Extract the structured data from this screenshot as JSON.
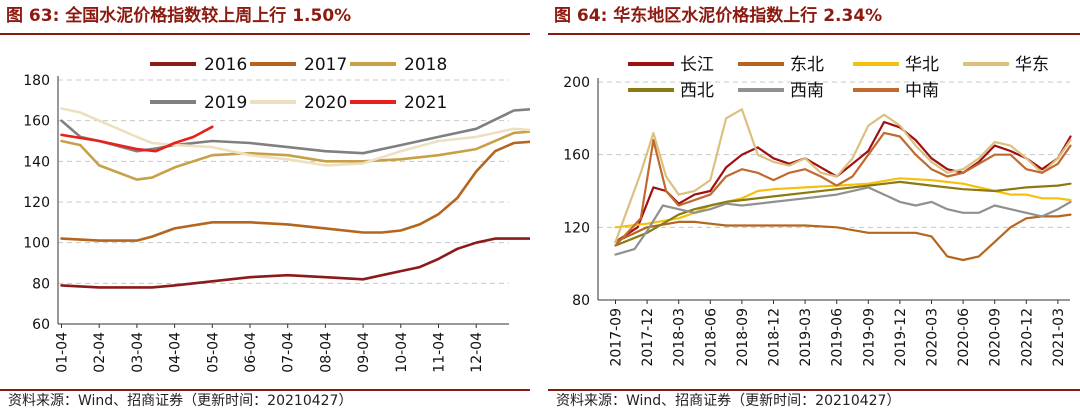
{
  "charts": [
    {
      "title": "图 63:  全国水泥价格指数较上周上行 1.50%",
      "source": "资料来源：Wind、招商证券（更新时间：20210427）"
    },
    {
      "title": "图 64:  华东地区水泥价格指数上行 2.34%",
      "source": "资料来源：Wind、招商证券（更新时间：20210427）"
    }
  ],
  "chart_data": [
    {
      "type": "line",
      "title": "图 63:  全国水泥价格指数较上周上行 1.50%",
      "ylim": [
        60,
        180
      ],
      "y_ticks": [
        "60",
        "80",
        "100",
        "120",
        "140",
        "160",
        "180"
      ],
      "x_ticks": [
        "01-04",
        "02-04",
        "03-04",
        "04-04",
        "05-04",
        "06-04",
        "07-04",
        "08-04",
        "09-04",
        "10-04",
        "11-04",
        "12-04"
      ],
      "grid": "horizontal dashed",
      "legend": "top",
      "series": [
        {
          "name": "2016",
          "color": "#8b1a1a",
          "x": [
            0,
            1,
            2,
            2.4,
            3,
            4,
            5,
            6,
            7,
            8,
            8.5,
            9,
            9.5,
            10,
            10.5,
            11,
            11.5,
            12,
            12.7
          ],
          "y": [
            79,
            78,
            78,
            78,
            79,
            81,
            83,
            84,
            83,
            82,
            84,
            86,
            88,
            92,
            97,
            100,
            102,
            102,
            102
          ]
        },
        {
          "name": "2017",
          "color": "#b5661e",
          "x": [
            0,
            1,
            2,
            2.4,
            3,
            4,
            5,
            6,
            7,
            8,
            8.5,
            9,
            9.5,
            10,
            10.5,
            11,
            11.5,
            12,
            12.7
          ],
          "y": [
            102,
            101,
            101,
            103,
            107,
            110,
            110,
            109,
            107,
            105,
            105,
            106,
            109,
            114,
            122,
            135,
            145,
            149,
            150
          ]
        },
        {
          "name": "2018",
          "color": "#c8a048",
          "x": [
            0,
            0.5,
            1,
            2,
            2.4,
            3,
            4,
            5,
            6,
            7,
            8,
            9,
            10,
            11,
            12,
            12.7
          ],
          "y": [
            150,
            148,
            138,
            131,
            132,
            137,
            143,
            144,
            143,
            140,
            140,
            141,
            143,
            146,
            154,
            155
          ]
        },
        {
          "name": "2019",
          "color": "#808080",
          "x": [
            0,
            0.5,
            1,
            2,
            2.4,
            3,
            4,
            5,
            6,
            7,
            8,
            9,
            10,
            11,
            12,
            12.7
          ],
          "y": [
            160,
            152,
            150,
            145,
            146,
            148,
            150,
            149,
            147,
            145,
            144,
            148,
            152,
            156,
            165,
            166
          ]
        },
        {
          "name": "2020",
          "color": "#ede0c0",
          "x": [
            0,
            0.5,
            1,
            2,
            2.4,
            3,
            4,
            5,
            6,
            7,
            8,
            9,
            10,
            11,
            12,
            12.7
          ],
          "y": [
            166,
            164,
            160,
            152,
            149,
            148,
            147,
            143,
            141,
            138,
            139,
            145,
            150,
            152,
            156,
            155
          ]
        },
        {
          "name": "2021",
          "color": "#e8201c",
          "x": [
            0,
            1,
            2,
            2.5,
            3,
            3.5,
            4
          ],
          "y": [
            153,
            150,
            146,
            145,
            149,
            152,
            157
          ]
        }
      ]
    },
    {
      "type": "line",
      "title": "图 64:  华东地区水泥价格指数上行 2.34%",
      "ylim": [
        80,
        200
      ],
      "y_ticks": [
        "80",
        "120",
        "160",
        "200"
      ],
      "x_ticks": [
        "2017-09",
        "2017-12",
        "2018-03",
        "2018-06",
        "2018-09",
        "2018-12",
        "2019-03",
        "2019-06",
        "2019-09",
        "2019-12",
        "2020-03",
        "2020-06",
        "2020-09",
        "2020-12",
        "2021-03"
      ],
      "grid": "horizontal dashed",
      "legend": "top",
      "series": [
        {
          "name": "长江",
          "color": "#a01010",
          "x": [
            0,
            0.7,
            1.2,
            1.6,
            2,
            2.5,
            3,
            3.5,
            4,
            4.5,
            5,
            5.5,
            6,
            6.5,
            7,
            7.5,
            8,
            8.5,
            9,
            9.5,
            10,
            10.5,
            11,
            11.5,
            12,
            12.5,
            13,
            13.5,
            14,
            14.4
          ],
          "y": [
            112,
            120,
            142,
            140,
            133,
            138,
            140,
            153,
            160,
            164,
            158,
            155,
            158,
            153,
            148,
            155,
            162,
            178,
            175,
            168,
            158,
            152,
            150,
            156,
            165,
            162,
            158,
            152,
            158,
            170
          ]
        },
        {
          "name": "东北",
          "color": "#b5661e",
          "x": [
            0,
            1,
            2,
            2.5,
            3,
            3.5,
            4,
            5,
            6,
            7,
            8,
            8.5,
            9,
            9.5,
            10,
            10.5,
            11,
            11.5,
            12,
            12.5,
            13,
            13.5,
            14,
            14.4
          ],
          "y": [
            112,
            120,
            123,
            123,
            122,
            121,
            121,
            121,
            121,
            120,
            117,
            117,
            117,
            117,
            115,
            104,
            102,
            104,
            112,
            120,
            125,
            126,
            126,
            127
          ]
        },
        {
          "name": "华北",
          "color": "#f5c010",
          "x": [
            0,
            1,
            2,
            2.5,
            3,
            3.5,
            4,
            4.5,
            5,
            6,
            7,
            8,
            9,
            10,
            11,
            12,
            12.5,
            13,
            13.5,
            14,
            14.4
          ],
          "y": [
            120,
            122,
            125,
            128,
            132,
            134,
            136,
            140,
            141,
            142,
            143,
            144,
            147,
            146,
            144,
            140,
            138,
            138,
            136,
            136,
            135
          ]
        },
        {
          "name": "华东",
          "color": "#dcc080",
          "x": [
            0,
            0.8,
            1.2,
            1.6,
            2,
            2.5,
            3,
            3.5,
            4,
            4.5,
            5,
            5.5,
            6,
            6.5,
            7,
            7.5,
            8,
            8.5,
            9,
            9.5,
            10,
            10.5,
            11,
            11.5,
            12,
            12.5,
            13,
            13.5,
            14,
            14.4
          ],
          "y": [
            112,
            150,
            172,
            148,
            138,
            140,
            146,
            180,
            185,
            160,
            156,
            154,
            158,
            150,
            148,
            158,
            176,
            182,
            176,
            165,
            156,
            150,
            152,
            158,
            167,
            165,
            158,
            150,
            158,
            168
          ]
        },
        {
          "name": "西北",
          "color": "#8b7a10",
          "x": [
            0,
            1,
            2,
            2.5,
            3,
            3.5,
            4,
            5,
            6,
            7,
            8,
            9,
            10,
            11,
            12,
            13,
            14,
            14.4
          ],
          "y": [
            110,
            117,
            127,
            130,
            132,
            134,
            135,
            137,
            139,
            141,
            143,
            145,
            143,
            141,
            140,
            142,
            143,
            144
          ]
        },
        {
          "name": "西南",
          "color": "#909090",
          "x": [
            0,
            0.6,
            1,
            1.5,
            2,
            2.5,
            3,
            3.5,
            4,
            5,
            6,
            7,
            8,
            8.5,
            9,
            9.5,
            10,
            10.5,
            11,
            11.5,
            12,
            12.5,
            13,
            13.5,
            14,
            14.4
          ],
          "y": [
            105,
            108,
            118,
            132,
            130,
            128,
            130,
            133,
            132,
            134,
            136,
            138,
            142,
            138,
            134,
            132,
            134,
            130,
            128,
            128,
            132,
            130,
            128,
            126,
            130,
            134
          ]
        },
        {
          "name": "中南",
          "color": "#c06a30",
          "x": [
            0,
            0.8,
            1.2,
            1.6,
            2,
            2.5,
            3,
            3.5,
            4,
            4.5,
            5,
            5.5,
            6,
            6.5,
            7,
            7.5,
            8,
            8.5,
            9,
            9.5,
            10,
            10.5,
            11,
            11.5,
            12,
            12.5,
            13,
            13.5,
            14,
            14.4
          ],
          "y": [
            110,
            125,
            168,
            140,
            132,
            135,
            138,
            148,
            152,
            150,
            146,
            150,
            152,
            148,
            143,
            148,
            160,
            172,
            170,
            160,
            152,
            148,
            150,
            155,
            160,
            160,
            152,
            150,
            155,
            165
          ]
        }
      ]
    }
  ]
}
